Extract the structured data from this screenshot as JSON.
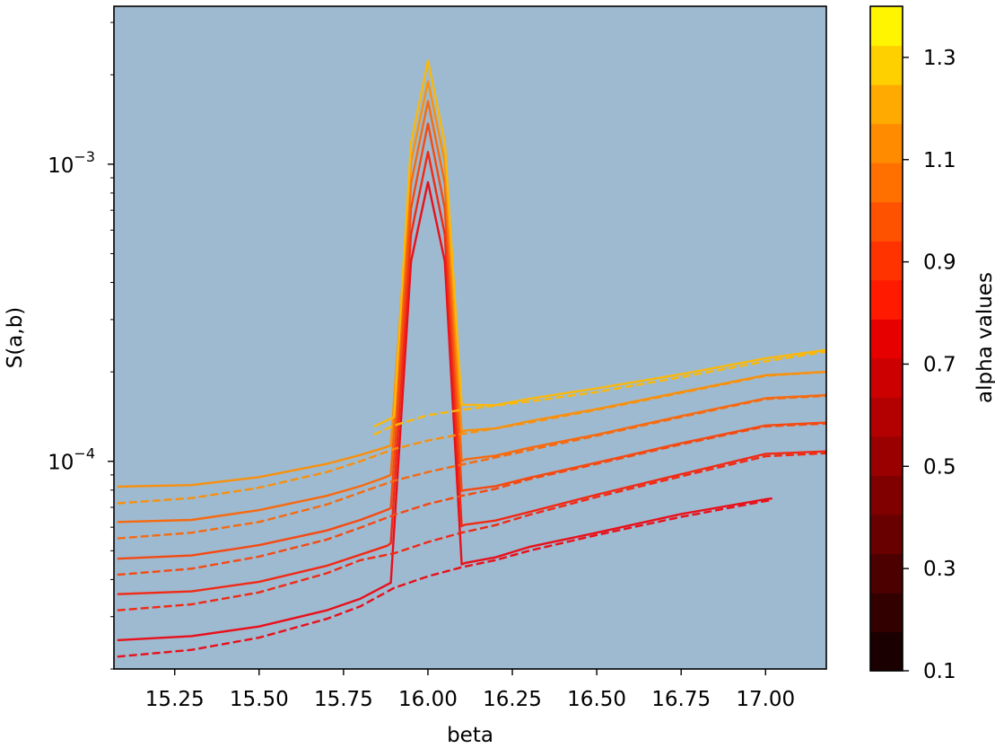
{
  "chart_data": {
    "type": "line",
    "title": "",
    "xlabel": "beta",
    "ylabel": "S(a,b)",
    "xlim": [
      15.07,
      17.18
    ],
    "ylim": [
      2e-05,
      0.0034
    ],
    "yscale": "log",
    "plot_background": "#9ebad1",
    "grid": false,
    "x_ticks": [
      15.25,
      15.5,
      15.75,
      16.0,
      16.25,
      16.5,
      16.75,
      17.0
    ],
    "x_tick_labels": [
      "15.25",
      "15.50",
      "15.75",
      "16.00",
      "16.25",
      "16.50",
      "16.75",
      "17.00"
    ],
    "y_ticks": [
      0.001,
      0.0001
    ],
    "y_tick_labels": [
      {
        "base": "10",
        "exp": "−3"
      },
      {
        "base": "10",
        "exp": "−4"
      }
    ],
    "colorbar": {
      "label": "alpha values",
      "range": [
        0.1,
        1.4
      ],
      "ticks": [
        0.1,
        0.3,
        0.5,
        0.7,
        0.9,
        1.1,
        1.3
      ],
      "tick_labels": [
        "0.1",
        "0.3",
        "0.5",
        "0.7",
        "0.9",
        "1.1",
        "1.3"
      ],
      "colors": [
        "#1a0000",
        "#330000",
        "#4d0000",
        "#680000",
        "#800000",
        "#9a0000",
        "#b30000",
        "#cc0000",
        "#e60000",
        "#ff1a00",
        "#ff3300",
        "#ff5200",
        "#ff7000",
        "#ff8c00",
        "#ffaa00",
        "#ffd000",
        "#fff500"
      ]
    },
    "series": [
      {
        "style": "solid",
        "color": "#e8101a",
        "x": [
          15.08,
          15.3,
          15.5,
          15.7,
          15.8,
          15.88,
          15.89,
          15.95,
          16.0,
          16.05,
          16.1,
          16.11,
          16.2,
          16.3,
          16.5,
          16.75,
          17.0,
          17.02
        ],
        "y": [
          2.5e-05,
          2.58e-05,
          2.78e-05,
          3.15e-05,
          3.45e-05,
          3.85e-05,
          3.9e-05,
          0.00047,
          0.00087,
          0.00047,
          4.5e-05,
          4.55e-05,
          4.75e-05,
          5.15e-05,
          5.75e-05,
          6.65e-05,
          7.45e-05,
          7.5e-05
        ]
      },
      {
        "style": "dashed",
        "color": "#e8101a",
        "x": [
          15.08,
          15.3,
          15.5,
          15.7,
          15.8,
          15.9,
          16.0,
          16.1,
          16.2,
          16.3,
          16.5,
          16.75,
          17.0,
          17.02
        ],
        "y": [
          2.2e-05,
          2.32e-05,
          2.55e-05,
          2.95e-05,
          3.25e-05,
          3.75e-05,
          4.1e-05,
          4.4e-05,
          4.65e-05,
          5e-05,
          5.65e-05,
          6.5e-05,
          7.35e-05,
          7.4e-05
        ]
      },
      {
        "style": "solid",
        "color": "#f02a15",
        "x": [
          15.08,
          15.3,
          15.5,
          15.7,
          15.8,
          15.88,
          15.89,
          15.95,
          16.0,
          16.05,
          16.1,
          16.11,
          16.2,
          16.3,
          16.5,
          16.75,
          17.0,
          17.18
        ],
        "y": [
          3.57e-05,
          3.65e-05,
          3.93e-05,
          4.45e-05,
          4.85e-05,
          5.2e-05,
          5.3e-05,
          0.00058,
          0.0011,
          0.00058,
          6.05e-05,
          6.12e-05,
          6.32e-05,
          6.75e-05,
          7.72e-05,
          9.05e-05,
          0.000106,
          0.000108
        ]
      },
      {
        "style": "dashed",
        "color": "#f02a15",
        "x": [
          15.08,
          15.3,
          15.5,
          15.7,
          15.8,
          15.9,
          16.0,
          16.1,
          16.2,
          16.3,
          16.5,
          16.75,
          17.0,
          17.18
        ],
        "y": [
          3.15e-05,
          3.3e-05,
          3.62e-05,
          4.2e-05,
          4.65e-05,
          4.9e-05,
          5.35e-05,
          5.75e-05,
          6.1e-05,
          6.6e-05,
          7.58e-05,
          8.9e-05,
          0.000104,
          0.0001065
        ]
      },
      {
        "style": "solid",
        "color": "#f44a12",
        "x": [
          15.08,
          15.3,
          15.5,
          15.7,
          15.8,
          15.87,
          15.89,
          15.95,
          16.0,
          16.05,
          16.1,
          16.11,
          16.2,
          16.3,
          16.5,
          16.75,
          17.0,
          17.18
        ],
        "y": [
          4.7e-05,
          4.82e-05,
          5.22e-05,
          5.85e-05,
          6.35e-05,
          6.8e-05,
          6.95e-05,
          0.00071,
          0.00137,
          0.00071,
          7.95e-05,
          8e-05,
          8.25e-05,
          8.8e-05,
          9.9e-05,
          0.000115,
          0.000132,
          0.000135
        ]
      },
      {
        "style": "dashed",
        "color": "#f44a12",
        "x": [
          15.08,
          15.3,
          15.5,
          15.7,
          15.8,
          15.9,
          16.0,
          16.1,
          16.2,
          16.3,
          16.5,
          16.75,
          17.0,
          17.18
        ],
        "y": [
          4.15e-05,
          4.35e-05,
          4.78e-05,
          5.45e-05,
          5.98e-05,
          6.6e-05,
          7.18e-05,
          7.65e-05,
          8.08e-05,
          8.7e-05,
          9.8e-05,
          0.000114,
          0.000131,
          0.000134
        ]
      },
      {
        "style": "solid",
        "color": "#f66a10",
        "x": [
          15.08,
          15.3,
          15.5,
          15.7,
          15.8,
          15.87,
          15.89,
          15.95,
          16.0,
          16.05,
          16.1,
          16.11,
          16.2,
          16.3,
          16.5,
          16.75,
          17.0,
          17.18
        ],
        "y": [
          6.25e-05,
          6.35e-05,
          6.85e-05,
          7.65e-05,
          8.25e-05,
          8.8e-05,
          9e-05,
          0.00086,
          0.00163,
          0.00086,
          0.0001,
          0.0001015,
          0.0001045,
          0.000111,
          0.000123,
          0.000142,
          0.000163,
          0.000167
        ]
      },
      {
        "style": "dashed",
        "color": "#f66a10",
        "x": [
          15.08,
          15.3,
          15.5,
          15.7,
          15.8,
          15.9,
          16.0,
          16.1,
          16.2,
          16.3,
          16.5,
          16.75,
          17.0,
          17.18
        ],
        "y": [
          5.5e-05,
          5.75e-05,
          6.25e-05,
          7.15e-05,
          7.85e-05,
          8.6e-05,
          9.2e-05,
          9.75e-05,
          0.000103,
          0.000109,
          0.000122,
          0.000141,
          0.000162,
          0.000166
        ]
      },
      {
        "style": "solid",
        "color": "#f8900d",
        "x": [
          15.08,
          15.3,
          15.5,
          15.7,
          15.8,
          15.87,
          15.89,
          15.95,
          16.0,
          16.05,
          16.1,
          16.11,
          16.2,
          16.3,
          16.5,
          16.75,
          17.0,
          17.18
        ],
        "y": [
          8.22e-05,
          8.32e-05,
          8.85e-05,
          9.8e-05,
          0.000105,
          0.000111,
          0.000113,
          0.00102,
          0.0019,
          0.00102,
          0.0001255,
          0.000127,
          0.000129,
          0.0001365,
          0.00015,
          0.000171,
          0.000195,
          0.0002
        ]
      },
      {
        "style": "dashed",
        "color": "#f8900d",
        "x": [
          15.08,
          15.3,
          15.5,
          15.7,
          15.8,
          15.9,
          16.0,
          16.1,
          16.2,
          16.3,
          16.5,
          16.75,
          17.0,
          17.18
        ],
        "y": [
          7.22e-05,
          7.52e-05,
          8.15e-05,
          9.2e-05,
          0.0001,
          0.00011,
          0.0001175,
          0.0001235,
          0.000129,
          0.000135,
          0.000149,
          0.00017,
          0.000194,
          0.0002
        ]
      },
      {
        "style": "solid",
        "color": "#fbb80a",
        "x": [
          15.84,
          15.9,
          15.95,
          16.0,
          16.05,
          16.1,
          16.11,
          16.2,
          16.3,
          16.5,
          16.75,
          17.0,
          17.18
        ],
        "y": [
          0.000131,
          0.000141,
          0.00118,
          0.00223,
          0.00118,
          0.000155,
          0.000155,
          0.0001545,
          0.0001625,
          0.000176,
          0.0001965,
          0.000222,
          0.000237
        ]
      },
      {
        "style": "dashed",
        "color": "#fbb80a",
        "x": [
          15.84,
          15.9,
          16.0,
          16.1,
          16.2,
          16.3,
          16.5,
          16.75,
          17.0,
          17.18
        ],
        "y": [
          0.000123,
          0.000132,
          0.000143,
          0.000149,
          0.000154,
          0.000159,
          0.000171,
          0.000192,
          0.000217,
          0.000234
        ]
      }
    ]
  }
}
